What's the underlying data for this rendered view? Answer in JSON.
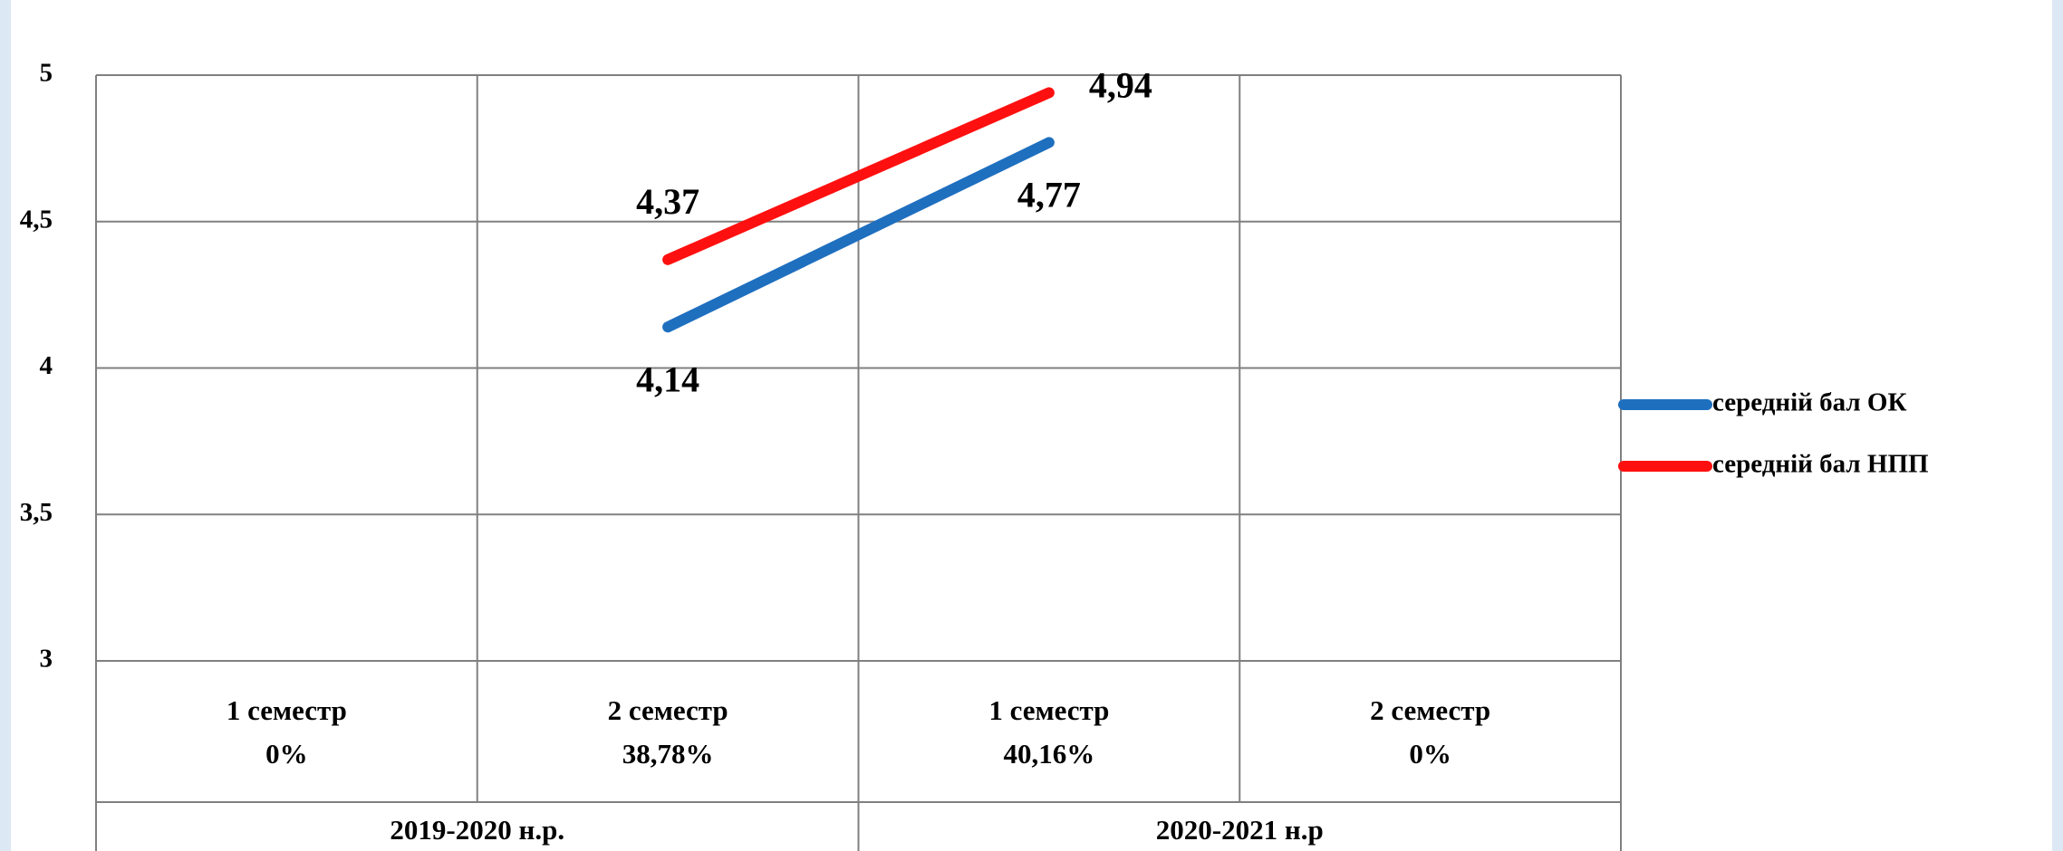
{
  "chart_data": {
    "type": "line",
    "categories": [
      "1 семестр",
      "2 семестр",
      "1 семестр",
      "2 семестр"
    ],
    "category_sublabels": [
      "0%",
      "38,78%",
      "40,16%",
      "0%"
    ],
    "groups": [
      {
        "label": "2019-2020 н.р.",
        "span": 2
      },
      {
        "label": "2020-2021 н.р",
        "span": 2
      }
    ],
    "series": [
      {
        "name": "середній бал ОК",
        "color": "#1f6fbf",
        "values": [
          null,
          4.14,
          4.77,
          null
        ],
        "value_labels": [
          null,
          "4,14",
          "4,77",
          null
        ]
      },
      {
        "name": "середній бал НПП",
        "color": "#ff1010",
        "values": [
          null,
          4.37,
          4.94,
          null
        ],
        "value_labels": [
          null,
          "4,37",
          "4,94",
          null
        ]
      }
    ],
    "ylim": [
      3,
      5
    ],
    "yticks": [
      3,
      {
        "value": 3.5,
        "label": "3,5"
      },
      4,
      {
        "value": 4.5,
        "label": "4,5"
      },
      5
    ],
    "grid": true,
    "legend": "right"
  }
}
